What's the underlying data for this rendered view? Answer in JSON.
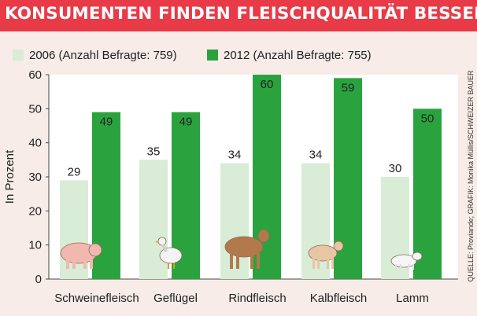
{
  "title": "KONSUMENTEN FINDEN FLEISCHQUALITÄT BESSER",
  "source": "QUELLE: Proviande; GRAFIK: Monika Müllis/SCHWEIZER BAUER",
  "colors": {
    "title_bg": "#e83a47",
    "series_2006": "#d8ecd6",
    "series_2012": "#2aa33f",
    "background": "#f7ece8"
  },
  "chart_data": {
    "type": "bar",
    "title": "KONSUMENTEN FINDEN FLEISCHQUALITÄT BESSER",
    "xlabel": "",
    "ylabel": "In Prozent",
    "ylim": [
      0,
      60
    ],
    "yticks": [
      0,
      10,
      20,
      30,
      40,
      50,
      60
    ],
    "grid": false,
    "legend_position": "top",
    "categories": [
      "Schweinefleisch",
      "Geflügel",
      "Rindfleisch",
      "Kalbfleisch",
      "Lamm"
    ],
    "series": [
      {
        "name": "2006 (Anzahl Befragte: 759)",
        "color": "#d8ecd6",
        "values": [
          29,
          35,
          34,
          34,
          30
        ]
      },
      {
        "name": "2012 (Anzahl Befragte: 755)",
        "color": "#2aa33f",
        "values": [
          49,
          49,
          60,
          59,
          50
        ]
      }
    ],
    "pictograms": [
      "pig-icon",
      "chicken-icon",
      "cow-icon",
      "calf-icon",
      "lamb-icon"
    ]
  }
}
